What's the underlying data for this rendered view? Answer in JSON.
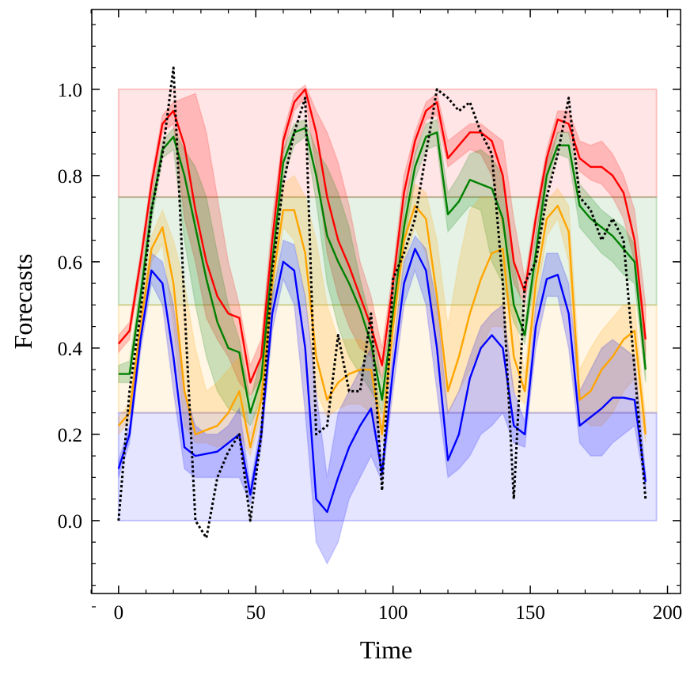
{
  "chart_data": {
    "type": "line",
    "xlabel": "Time",
    "ylabel": "Forecasts",
    "xlim": [
      -9.75,
      204.75
    ],
    "ylim": [
      -0.169,
      1.185
    ],
    "xticks": [
      0,
      50,
      100,
      150,
      200
    ],
    "yticks": [
      {
        "value": 0,
        "label": "0.0"
      },
      {
        "value": 0.2,
        "label": "0.2"
      },
      {
        "value": 0.4,
        "label": "0.4"
      },
      {
        "value": 0.6,
        "label": "0.6"
      },
      {
        "value": 0.8,
        "label": "0.8"
      },
      {
        "value": 1.0,
        "label": "1.0"
      }
    ],
    "minor_ticks": true,
    "spans": [
      {
        "x": [
          0,
          196
        ],
        "y": [
          0.75,
          1.0
        ],
        "color": "#ff0000"
      },
      {
        "x": [
          0,
          196
        ],
        "y": [
          0.5,
          0.75
        ],
        "color": "#008000"
      },
      {
        "x": [
          0,
          196
        ],
        "y": [
          0.25,
          0.5
        ],
        "color": "#ffa500"
      },
      {
        "x": [
          0,
          196
        ],
        "y": [
          0,
          0.25
        ],
        "color": "#0000ff"
      }
    ],
    "x": [
      0,
      4,
      8,
      12,
      16,
      20,
      24,
      28,
      32,
      36,
      40,
      44,
      48,
      52,
      56,
      60,
      64,
      68,
      72,
      76,
      80,
      84,
      88,
      92,
      96,
      100,
      104,
      108,
      112,
      116,
      120,
      124,
      128,
      132,
      136,
      140,
      144,
      148,
      152,
      156,
      160,
      164,
      168,
      172,
      176,
      180,
      184,
      188,
      192
    ],
    "series": [
      {
        "color": "#ff0000",
        "linestyle": "solid",
        "values": [
          0.41,
          0.44,
          0.6,
          0.78,
          0.92,
          0.95,
          0.87,
          0.72,
          0.6,
          0.52,
          0.48,
          0.47,
          0.32,
          0.38,
          0.65,
          0.88,
          0.97,
          1.0,
          0.9,
          0.75,
          0.65,
          0.59,
          0.52,
          0.45,
          0.36,
          0.55,
          0.76,
          0.88,
          0.95,
          0.97,
          0.84,
          0.87,
          0.9,
          0.9,
          0.88,
          0.8,
          0.6,
          0.53,
          0.7,
          0.84,
          0.93,
          0.92,
          0.84,
          0.82,
          0.82,
          0.8,
          0.76,
          0.65,
          0.42
        ],
        "lower": [
          0.39,
          0.42,
          0.57,
          0.75,
          0.9,
          0.92,
          0.7,
          0.6,
          0.47,
          0.42,
          0.38,
          0.32,
          0.29,
          0.33,
          0.58,
          0.85,
          0.95,
          0.98,
          0.82,
          0.62,
          0.52,
          0.45,
          0.4,
          0.38,
          0.33,
          0.5,
          0.72,
          0.85,
          0.93,
          0.94,
          0.82,
          0.84,
          0.86,
          0.85,
          0.8,
          0.68,
          0.55,
          0.5,
          0.66,
          0.8,
          0.9,
          0.9,
          0.81,
          0.79,
          0.78,
          0.75,
          0.7,
          0.6,
          0.38
        ],
        "upper": [
          0.43,
          0.46,
          0.62,
          0.8,
          0.94,
          0.97,
          0.98,
          0.99,
          0.9,
          0.75,
          0.6,
          0.5,
          0.36,
          0.42,
          0.7,
          0.9,
          0.99,
          1.01,
          0.95,
          0.9,
          0.83,
          0.73,
          0.6,
          0.52,
          0.4,
          0.58,
          0.8,
          0.9,
          0.97,
          0.99,
          0.88,
          0.9,
          0.92,
          0.92,
          0.9,
          0.88,
          0.7,
          0.56,
          0.72,
          0.86,
          0.95,
          0.95,
          0.88,
          0.87,
          0.88,
          0.85,
          0.8,
          0.72,
          0.5
        ]
      },
      {
        "color": "#008000",
        "linestyle": "solid",
        "values": [
          0.34,
          0.34,
          0.52,
          0.72,
          0.86,
          0.89,
          0.8,
          0.68,
          0.56,
          0.46,
          0.4,
          0.39,
          0.25,
          0.33,
          0.6,
          0.83,
          0.9,
          0.91,
          0.8,
          0.66,
          0.6,
          0.55,
          0.49,
          0.41,
          0.28,
          0.48,
          0.68,
          0.82,
          0.89,
          0.9,
          0.71,
          0.74,
          0.79,
          0.78,
          0.77,
          0.7,
          0.5,
          0.43,
          0.62,
          0.8,
          0.87,
          0.87,
          0.73,
          0.7,
          0.68,
          0.66,
          0.63,
          0.6,
          0.35
        ],
        "lower": [
          0.32,
          0.32,
          0.49,
          0.69,
          0.84,
          0.86,
          0.65,
          0.5,
          0.38,
          0.3,
          0.26,
          0.25,
          0.22,
          0.28,
          0.52,
          0.79,
          0.87,
          0.89,
          0.74,
          0.55,
          0.45,
          0.38,
          0.34,
          0.3,
          0.25,
          0.44,
          0.64,
          0.79,
          0.86,
          0.87,
          0.67,
          0.7,
          0.73,
          0.72,
          0.6,
          0.55,
          0.46,
          0.41,
          0.58,
          0.77,
          0.85,
          0.84,
          0.68,
          0.65,
          0.62,
          0.6,
          0.57,
          0.55,
          0.32
        ],
        "upper": [
          0.36,
          0.37,
          0.55,
          0.75,
          0.88,
          0.91,
          0.86,
          0.82,
          0.75,
          0.62,
          0.5,
          0.42,
          0.28,
          0.38,
          0.66,
          0.86,
          0.92,
          0.93,
          0.86,
          0.82,
          0.76,
          0.68,
          0.56,
          0.46,
          0.32,
          0.52,
          0.72,
          0.85,
          0.92,
          0.93,
          0.76,
          0.8,
          0.85,
          0.86,
          0.84,
          0.8,
          0.6,
          0.46,
          0.66,
          0.83,
          0.9,
          0.9,
          0.78,
          0.75,
          0.72,
          0.7,
          0.68,
          0.64,
          0.4
        ]
      },
      {
        "color": "#ffa500",
        "linestyle": "solid",
        "values": [
          0.22,
          0.25,
          0.45,
          0.63,
          0.68,
          0.55,
          0.3,
          0.2,
          0.21,
          0.22,
          0.25,
          0.3,
          0.17,
          0.28,
          0.55,
          0.72,
          0.72,
          0.62,
          0.38,
          0.28,
          0.32,
          0.34,
          0.35,
          0.35,
          0.2,
          0.45,
          0.65,
          0.73,
          0.7,
          0.52,
          0.3,
          0.38,
          0.48,
          0.56,
          0.62,
          0.63,
          0.38,
          0.3,
          0.55,
          0.7,
          0.73,
          0.67,
          0.28,
          0.3,
          0.35,
          0.38,
          0.42,
          0.44,
          0.2
        ],
        "lower": [
          0.2,
          0.23,
          0.42,
          0.6,
          0.64,
          0.45,
          0.22,
          0.18,
          0.18,
          0.17,
          0.18,
          0.2,
          0.15,
          0.24,
          0.5,
          0.68,
          0.65,
          0.52,
          0.3,
          0.24,
          0.26,
          0.27,
          0.27,
          0.25,
          0.18,
          0.4,
          0.6,
          0.68,
          0.62,
          0.4,
          0.25,
          0.3,
          0.35,
          0.4,
          0.45,
          0.45,
          0.3,
          0.27,
          0.5,
          0.66,
          0.7,
          0.6,
          0.24,
          0.22,
          0.22,
          0.25,
          0.3,
          0.33,
          0.18
        ],
        "upper": [
          0.24,
          0.27,
          0.48,
          0.66,
          0.72,
          0.65,
          0.55,
          0.4,
          0.3,
          0.32,
          0.35,
          0.38,
          0.2,
          0.33,
          0.6,
          0.78,
          0.8,
          0.75,
          0.65,
          0.5,
          0.42,
          0.42,
          0.42,
          0.4,
          0.23,
          0.5,
          0.7,
          0.78,
          0.76,
          0.65,
          0.45,
          0.6,
          0.72,
          0.75,
          0.75,
          0.7,
          0.5,
          0.34,
          0.6,
          0.74,
          0.77,
          0.73,
          0.35,
          0.4,
          0.44,
          0.47,
          0.5,
          0.5,
          0.24
        ]
      },
      {
        "color": "#0000ff",
        "linestyle": "solid",
        "values": [
          0.12,
          0.2,
          0.42,
          0.58,
          0.55,
          0.38,
          0.17,
          0.15,
          0.155,
          0.16,
          0.18,
          0.2,
          0.06,
          0.2,
          0.48,
          0.6,
          0.58,
          0.4,
          0.05,
          0.02,
          0.1,
          0.17,
          0.22,
          0.26,
          0.11,
          0.35,
          0.55,
          0.63,
          0.58,
          0.4,
          0.14,
          0.2,
          0.33,
          0.4,
          0.43,
          0.4,
          0.22,
          0.2,
          0.45,
          0.56,
          0.57,
          0.48,
          0.22,
          0.24,
          0.26,
          0.285,
          0.285,
          0.28,
          0.09
        ],
        "lower": [
          0.1,
          0.18,
          0.39,
          0.55,
          0.5,
          0.3,
          0.12,
          0.1,
          0.1,
          0.1,
          0.1,
          0.1,
          0.04,
          0.17,
          0.44,
          0.56,
          0.5,
          0.25,
          -0.05,
          -0.1,
          -0.05,
          0.05,
          0.1,
          0.15,
          0.09,
          0.3,
          0.5,
          0.58,
          0.5,
          0.3,
          0.1,
          0.12,
          0.15,
          0.2,
          0.22,
          0.25,
          0.18,
          0.17,
          0.4,
          0.52,
          0.52,
          0.4,
          0.18,
          0.15,
          0.15,
          0.18,
          0.2,
          0.22,
          0.07
        ],
        "upper": [
          0.14,
          0.22,
          0.45,
          0.62,
          0.6,
          0.5,
          0.3,
          0.22,
          0.2,
          0.2,
          0.22,
          0.26,
          0.08,
          0.23,
          0.52,
          0.65,
          0.64,
          0.52,
          0.3,
          0.1,
          0.25,
          0.3,
          0.35,
          0.4,
          0.13,
          0.4,
          0.6,
          0.66,
          0.63,
          0.5,
          0.25,
          0.3,
          0.38,
          0.45,
          0.48,
          0.5,
          0.3,
          0.23,
          0.5,
          0.62,
          0.62,
          0.55,
          0.3,
          0.35,
          0.4,
          0.42,
          0.4,
          0.38,
          0.11
        ]
      },
      {
        "color": "#000000",
        "linestyle": "dotted",
        "values": [
          0.0,
          0.3,
          0.48,
          0.72,
          0.85,
          1.05,
          0.5,
          0.0,
          -0.04,
          0.1,
          0.16,
          0.2,
          0.0,
          0.2,
          0.58,
          0.78,
          0.9,
          0.98,
          0.2,
          0.22,
          0.43,
          0.3,
          0.3,
          0.48,
          0.07,
          0.56,
          0.62,
          0.7,
          0.85,
          1.0,
          0.98,
          0.95,
          0.97,
          0.9,
          0.85,
          0.55,
          0.05,
          0.55,
          0.6,
          0.75,
          0.85,
          0.98,
          0.75,
          0.72,
          0.65,
          0.7,
          0.65,
          0.35,
          0.05
        ]
      }
    ]
  }
}
